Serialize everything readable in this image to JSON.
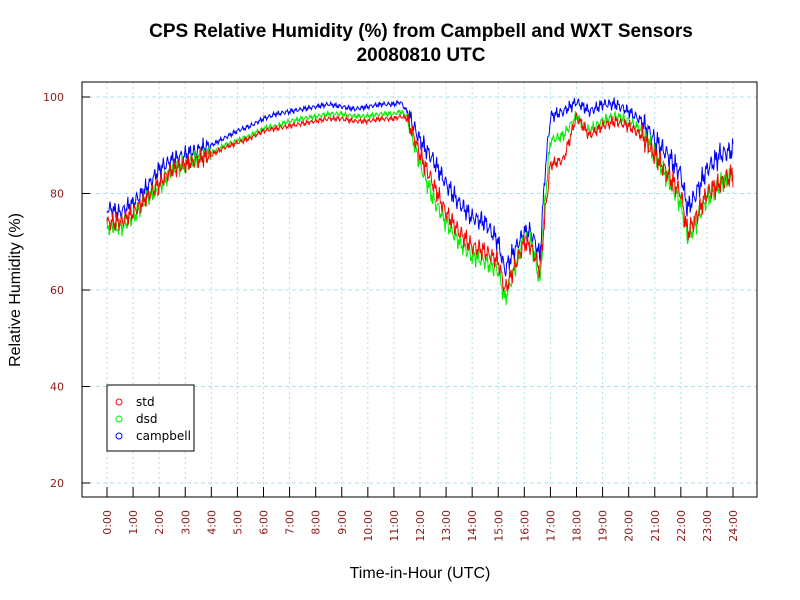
{
  "chart_data": {
    "type": "line",
    "title": "CPS Relative Humidity (%) from Campbell and WXT Sensors",
    "subtitle": "20080810  UTC",
    "xlabel": "Time-in-Hour (UTC)",
    "ylabel": "Relative Humidity (%)",
    "xlim": [
      0,
      24
    ],
    "ylim": [
      20,
      100
    ],
    "x_ticks": [
      "0:00",
      "1:00",
      "2:00",
      "3:00",
      "4:00",
      "5:00",
      "6:00",
      "7:00",
      "8:00",
      "9:00",
      "10:00",
      "11:00",
      "12:00",
      "13:00",
      "14:00",
      "15:00",
      "16:00",
      "17:00",
      "18:00",
      "19:00",
      "20:00",
      "21:00",
      "22:00",
      "23:00",
      "24:00"
    ],
    "y_ticks": [
      "20",
      "40",
      "60",
      "80",
      "100"
    ],
    "grid": true,
    "legend_position": "bottom-left",
    "x_hours": [
      0,
      0.5,
      1,
      1.5,
      2,
      2.5,
      3,
      3.5,
      4,
      4.5,
      5,
      5.5,
      6,
      6.5,
      7,
      7.5,
      8,
      8.5,
      9,
      9.5,
      10,
      10.5,
      11,
      11.25,
      11.5,
      11.75,
      12,
      12.5,
      13,
      13.5,
      14,
      14.5,
      15,
      15.25,
      15.5,
      16,
      16.25,
      16.4,
      16.6,
      16.8,
      17,
      17.5,
      18,
      18.25,
      18.5,
      19,
      19.5,
      20,
      20.5,
      21,
      21.5,
      22,
      22.25,
      22.5,
      23,
      23.5,
      24
    ],
    "series": [
      {
        "name": "std",
        "color": "#ff0000",
        "values": [
          74,
          74,
          76,
          79,
          82,
          85,
          86,
          87,
          88,
          89.5,
          90.5,
          91.5,
          93,
          93.5,
          94,
          94.5,
          95,
          95.5,
          95.5,
          95,
          95,
          95.5,
          95.5,
          96,
          95.5,
          92,
          88,
          82,
          76,
          72,
          69,
          68,
          66,
          60,
          63,
          70,
          69,
          67,
          64,
          76,
          86,
          87,
          96,
          94,
          92,
          94,
          95,
          94,
          92,
          88,
          84,
          80,
          72,
          74,
          80,
          82,
          84
        ]
      },
      {
        "name": "dsd",
        "color": "#00ee00",
        "values": [
          73,
          73,
          75,
          79,
          81,
          85,
          86,
          87.5,
          88.5,
          90,
          91,
          92,
          93.5,
          94,
          95,
          95.5,
          96,
          96.5,
          96.5,
          96,
          96,
          96.5,
          96.5,
          97,
          96,
          91,
          86,
          79,
          74,
          70,
          67,
          66,
          64,
          58,
          62,
          71,
          70,
          67,
          61,
          79,
          91,
          92,
          96,
          94,
          93,
          95,
          96,
          95,
          93,
          88,
          83,
          78,
          71,
          73,
          79,
          82,
          84
        ]
      },
      {
        "name": "campbell",
        "color": "#0000ff",
        "values": [
          77,
          76,
          78,
          81,
          85,
          87,
          88,
          89,
          90,
          91.5,
          93,
          94,
          95.5,
          96.5,
          97,
          97.5,
          98,
          98.5,
          98,
          97.5,
          98,
          98.5,
          98.5,
          99,
          97,
          94,
          91,
          87,
          82,
          78,
          75,
          74,
          70,
          64,
          67,
          72,
          72,
          70,
          67,
          85,
          96,
          97,
          99,
          98,
          97,
          98.5,
          98.5,
          97,
          95,
          91,
          88,
          84,
          77,
          79,
          85,
          88,
          89
        ]
      }
    ]
  }
}
